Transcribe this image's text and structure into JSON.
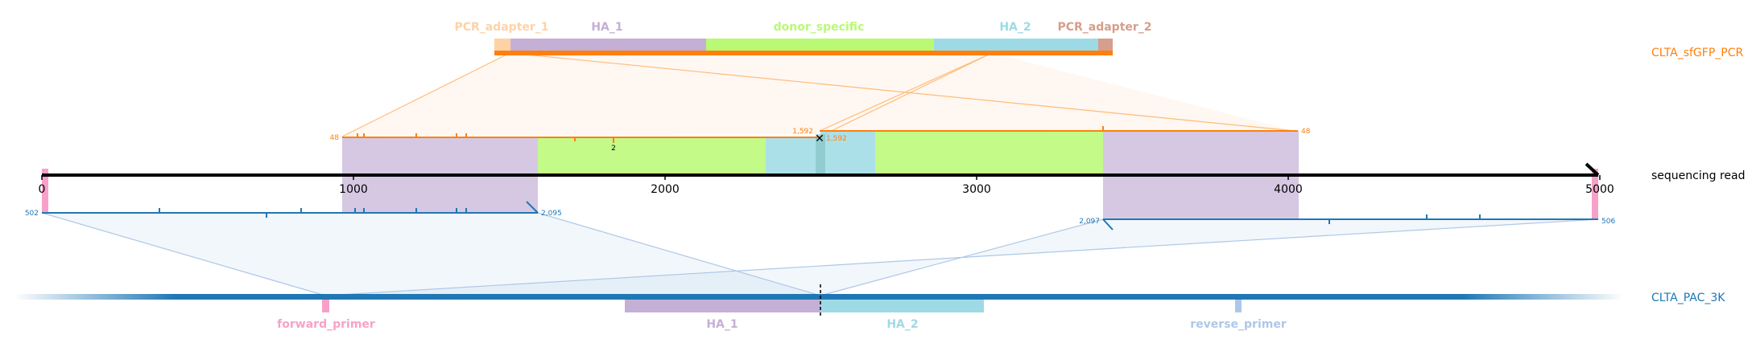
{
  "top_reference": {
    "name": "CLTA_sfGFP_PCR",
    "color": "#ff7f0e",
    "features": [
      {
        "label": "PCR_adapter_1",
        "color": "#ffd2a6"
      },
      {
        "label": "HA_1",
        "color": "#c5b0d5"
      },
      {
        "label": "donor_specific",
        "color": "#b9f973"
      },
      {
        "label": "HA_2",
        "color": "#9edae5"
      },
      {
        "label": "PCR_adapter_2",
        "color": "#d69e8c"
      }
    ],
    "alignment_left": {
      "query_start": "48",
      "query_end": "1,592",
      "insertion_count": "2"
    },
    "alignment_right": {
      "query_start": "1,592",
      "query_end": "48"
    }
  },
  "read": {
    "name": "sequencing read",
    "axis_ticks": [
      "0",
      "1000",
      "2000",
      "3000",
      "4000",
      "5000"
    ]
  },
  "bottom_reference": {
    "name": "CLTA_PAC_3K",
    "color": "#1f77b4",
    "features": [
      {
        "label": "forward_primer",
        "color": "#f7a1c8"
      },
      {
        "label": "HA_1",
        "color": "#c5b0d5"
      },
      {
        "label": "HA_2",
        "color": "#9edae5"
      },
      {
        "label": "reverse_primer",
        "color": "#aec7e8"
      }
    ],
    "alignment_left": {
      "query_start": "502",
      "query_end": "2,095"
    },
    "alignment_right": {
      "query_start": "2,097",
      "query_end": "506"
    }
  }
}
